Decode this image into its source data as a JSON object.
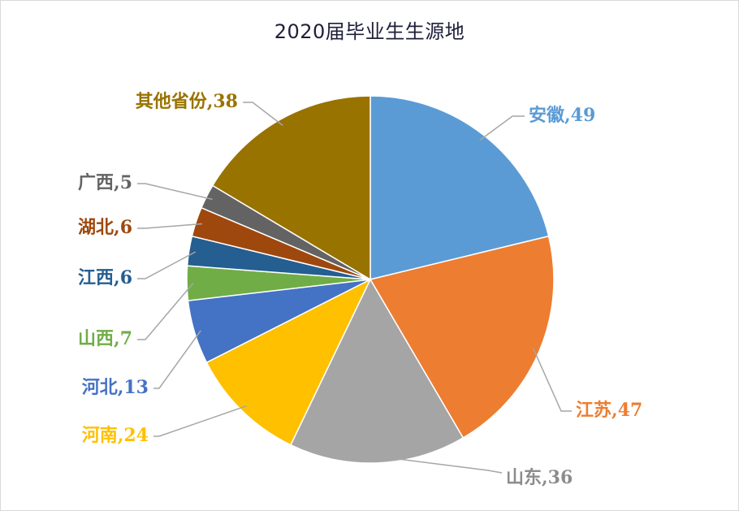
{
  "chart_data": {
    "type": "pie",
    "title": "2020届毕业生生源地",
    "legend": "none",
    "slices": [
      {
        "name": "安徽",
        "value": 49,
        "color": "#5b9bd5",
        "label": "安徽,49"
      },
      {
        "name": "江苏",
        "value": 47,
        "color": "#ed7d31",
        "label": "江苏,47"
      },
      {
        "name": "山东",
        "value": 36,
        "color": "#a5a5a5",
        "label": "山东,36"
      },
      {
        "name": "河南",
        "value": 24,
        "color": "#ffc000",
        "label": "河南,24"
      },
      {
        "name": "河北",
        "value": 13,
        "color": "#4472c4",
        "label": "河北,13"
      },
      {
        "name": "山西",
        "value": 7,
        "color": "#70ad47",
        "label": "山西,7"
      },
      {
        "name": "江西",
        "value": 6,
        "color": "#255e91",
        "label": "江西,6"
      },
      {
        "name": "湖北",
        "value": 6,
        "color": "#9e480e",
        "label": "湖北,6"
      },
      {
        "name": "广西",
        "value": 5,
        "color": "#636363",
        "label": "广西,5"
      },
      {
        "name": "其他省份",
        "value": 38,
        "color": "#997300",
        "label": "其他省份,38"
      }
    ]
  }
}
